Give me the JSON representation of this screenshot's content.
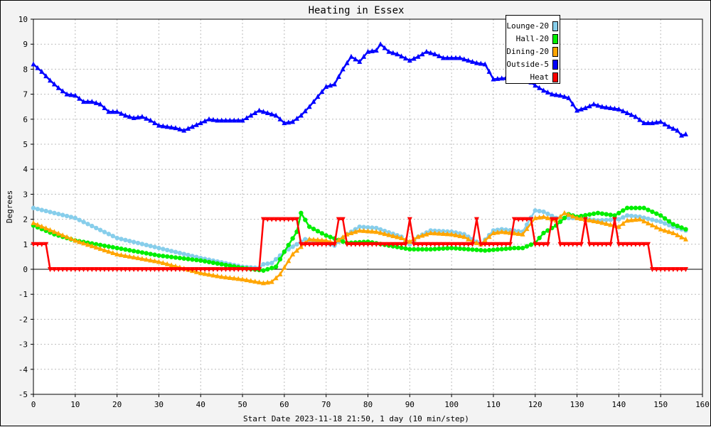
{
  "chart_data": {
    "type": "line",
    "title": "Heating in Essex",
    "xlabel": "Start Date 2023-11-18 21:50, 1 day (10 min/step)",
    "ylabel": "Degrees",
    "xlim": [
      0,
      160
    ],
    "ylim": [
      -5,
      10
    ],
    "xticks": [
      0,
      10,
      20,
      30,
      40,
      50,
      60,
      70,
      80,
      90,
      100,
      110,
      120,
      130,
      140,
      150,
      160
    ],
    "yticks": [
      -5,
      -4,
      -3,
      -2,
      -1,
      0,
      1,
      2,
      3,
      4,
      5,
      6,
      7,
      8,
      9,
      10
    ],
    "grid": true,
    "legend_position": "top-right",
    "series": [
      {
        "name": "Lounge-20",
        "color": "#87ceeb",
        "marker": "circle",
        "points": [
          [
            0,
            2.45
          ],
          [
            5,
            2.25
          ],
          [
            10,
            2.05
          ],
          [
            20,
            1.25
          ],
          [
            25,
            1.05
          ],
          [
            30,
            0.85
          ],
          [
            40,
            0.45
          ],
          [
            50,
            0.1
          ],
          [
            54,
            0.05
          ],
          [
            55,
            0.2
          ],
          [
            57,
            0.25
          ],
          [
            60,
            0.7
          ],
          [
            65,
            1.2
          ],
          [
            70,
            1.05
          ],
          [
            72,
            0.95
          ],
          [
            75,
            1.4
          ],
          [
            78,
            1.7
          ],
          [
            82,
            1.65
          ],
          [
            88,
            1.3
          ],
          [
            90,
            1.0
          ],
          [
            92,
            1.3
          ],
          [
            95,
            1.55
          ],
          [
            100,
            1.5
          ],
          [
            103,
            1.4
          ],
          [
            105,
            1.2
          ],
          [
            107,
            1.0
          ],
          [
            110,
            1.55
          ],
          [
            112,
            1.6
          ],
          [
            117,
            1.5
          ],
          [
            120,
            2.35
          ],
          [
            122,
            2.3
          ],
          [
            125,
            2.05
          ],
          [
            127,
            2.05
          ],
          [
            130,
            2.05
          ],
          [
            135,
            1.95
          ],
          [
            140,
            2.0
          ],
          [
            142,
            2.15
          ],
          [
            145,
            2.1
          ],
          [
            150,
            1.9
          ],
          [
            153,
            1.7
          ],
          [
            156,
            1.55
          ]
        ]
      },
      {
        "name": "Hall-20",
        "color": "#00ee00",
        "marker": "circle",
        "points": [
          [
            0,
            1.75
          ],
          [
            5,
            1.4
          ],
          [
            10,
            1.15
          ],
          [
            20,
            0.85
          ],
          [
            30,
            0.55
          ],
          [
            40,
            0.35
          ],
          [
            50,
            0.05
          ],
          [
            55,
            -0.05
          ],
          [
            58,
            0.1
          ],
          [
            60,
            0.7
          ],
          [
            63,
            1.5
          ],
          [
            64,
            2.25
          ],
          [
            66,
            1.7
          ],
          [
            70,
            1.35
          ],
          [
            75,
            1.05
          ],
          [
            80,
            1.1
          ],
          [
            90,
            0.8
          ],
          [
            95,
            0.8
          ],
          [
            100,
            0.85
          ],
          [
            108,
            0.75
          ],
          [
            115,
            0.85
          ],
          [
            117,
            0.85
          ],
          [
            120,
            1.05
          ],
          [
            122,
            1.45
          ],
          [
            125,
            1.75
          ],
          [
            128,
            2.2
          ],
          [
            130,
            2.1
          ],
          [
            135,
            2.25
          ],
          [
            139,
            2.15
          ],
          [
            142,
            2.45
          ],
          [
            146,
            2.45
          ],
          [
            150,
            2.15
          ],
          [
            153,
            1.8
          ],
          [
            156,
            1.6
          ]
        ]
      },
      {
        "name": "Dining-20",
        "color": "#ffa500",
        "marker": "triangle",
        "points": [
          [
            0,
            1.85
          ],
          [
            5,
            1.5
          ],
          [
            10,
            1.15
          ],
          [
            20,
            0.6
          ],
          [
            30,
            0.3
          ],
          [
            40,
            -0.15
          ],
          [
            45,
            -0.3
          ],
          [
            50,
            -0.4
          ],
          [
            55,
            -0.55
          ],
          [
            57,
            -0.5
          ],
          [
            59,
            -0.2
          ],
          [
            62,
            0.6
          ],
          [
            66,
            1.2
          ],
          [
            70,
            1.15
          ],
          [
            72,
            1.05
          ],
          [
            75,
            1.4
          ],
          [
            78,
            1.55
          ],
          [
            82,
            1.5
          ],
          [
            88,
            1.25
          ],
          [
            90,
            1.1
          ],
          [
            92,
            1.3
          ],
          [
            95,
            1.45
          ],
          [
            100,
            1.4
          ],
          [
            103,
            1.3
          ],
          [
            105,
            1.1
          ],
          [
            107,
            1.0
          ],
          [
            110,
            1.45
          ],
          [
            112,
            1.5
          ],
          [
            117,
            1.4
          ],
          [
            120,
            2.05
          ],
          [
            122,
            2.1
          ],
          [
            125,
            1.95
          ],
          [
            127,
            2.25
          ],
          [
            130,
            2.05
          ],
          [
            135,
            1.9
          ],
          [
            140,
            1.7
          ],
          [
            142,
            1.95
          ],
          [
            145,
            2.0
          ],
          [
            150,
            1.6
          ],
          [
            153,
            1.45
          ],
          [
            156,
            1.2
          ]
        ]
      },
      {
        "name": "Outside-5",
        "color": "#0000ff",
        "marker": "triangle",
        "points": [
          [
            0,
            8.2
          ],
          [
            2,
            7.9
          ],
          [
            4,
            7.55
          ],
          [
            6,
            7.25
          ],
          [
            8,
            7.0
          ],
          [
            10,
            6.95
          ],
          [
            12,
            6.7
          ],
          [
            14,
            6.7
          ],
          [
            16,
            6.6
          ],
          [
            18,
            6.3
          ],
          [
            20,
            6.3
          ],
          [
            22,
            6.15
          ],
          [
            24,
            6.05
          ],
          [
            26,
            6.1
          ],
          [
            28,
            5.95
          ],
          [
            30,
            5.75
          ],
          [
            32,
            5.7
          ],
          [
            34,
            5.65
          ],
          [
            36,
            5.55
          ],
          [
            38,
            5.7
          ],
          [
            40,
            5.85
          ],
          [
            42,
            6.0
          ],
          [
            44,
            5.95
          ],
          [
            46,
            5.95
          ],
          [
            48,
            5.95
          ],
          [
            50,
            5.95
          ],
          [
            52,
            6.15
          ],
          [
            54,
            6.35
          ],
          [
            56,
            6.25
          ],
          [
            58,
            6.15
          ],
          [
            60,
            5.85
          ],
          [
            62,
            5.9
          ],
          [
            64,
            6.15
          ],
          [
            66,
            6.5
          ],
          [
            68,
            6.9
          ],
          [
            70,
            7.3
          ],
          [
            72,
            7.4
          ],
          [
            74,
            8.0
          ],
          [
            76,
            8.5
          ],
          [
            78,
            8.3
          ],
          [
            80,
            8.7
          ],
          [
            82,
            8.75
          ],
          [
            83,
            9.0
          ],
          [
            85,
            8.7
          ],
          [
            87,
            8.6
          ],
          [
            90,
            8.35
          ],
          [
            92,
            8.5
          ],
          [
            94,
            8.7
          ],
          [
            96,
            8.6
          ],
          [
            98,
            8.45
          ],
          [
            102,
            8.45
          ],
          [
            104,
            8.35
          ],
          [
            106,
            8.25
          ],
          [
            108,
            8.2
          ],
          [
            110,
            7.6
          ],
          [
            113,
            7.65
          ],
          [
            116,
            7.65
          ],
          [
            118,
            7.6
          ],
          [
            120,
            7.35
          ],
          [
            122,
            7.15
          ],
          [
            124,
            7.0
          ],
          [
            126,
            6.95
          ],
          [
            128,
            6.85
          ],
          [
            130,
            6.35
          ],
          [
            132,
            6.45
          ],
          [
            134,
            6.6
          ],
          [
            136,
            6.5
          ],
          [
            138,
            6.45
          ],
          [
            140,
            6.4
          ],
          [
            142,
            6.25
          ],
          [
            144,
            6.1
          ],
          [
            146,
            5.85
          ],
          [
            148,
            5.85
          ],
          [
            150,
            5.9
          ],
          [
            152,
            5.7
          ],
          [
            154,
            5.55
          ],
          [
            155,
            5.35
          ],
          [
            156,
            5.4
          ]
        ]
      },
      {
        "name": "Heat",
        "color": "#ff0000",
        "marker": "triangle-down",
        "points": [
          [
            0,
            1
          ],
          [
            3,
            1
          ],
          [
            4,
            0
          ],
          [
            54,
            0
          ],
          [
            55,
            2
          ],
          [
            63,
            2
          ],
          [
            64,
            1
          ],
          [
            72,
            1
          ],
          [
            73,
            2
          ],
          [
            74,
            2
          ],
          [
            75,
            1
          ],
          [
            89,
            1
          ],
          [
            90,
            2
          ],
          [
            91,
            1
          ],
          [
            105,
            1
          ],
          [
            106,
            2
          ],
          [
            107,
            1
          ],
          [
            114,
            1
          ],
          [
            115,
            2
          ],
          [
            119,
            2
          ],
          [
            120,
            1
          ],
          [
            123,
            1
          ],
          [
            124,
            2
          ],
          [
            125,
            2
          ],
          [
            126,
            1
          ],
          [
            131,
            1
          ],
          [
            132,
            2
          ],
          [
            133,
            1
          ],
          [
            138,
            1
          ],
          [
            139,
            2
          ],
          [
            140,
            1
          ],
          [
            147,
            1
          ],
          [
            148,
            0
          ],
          [
            156,
            0
          ]
        ]
      }
    ]
  }
}
